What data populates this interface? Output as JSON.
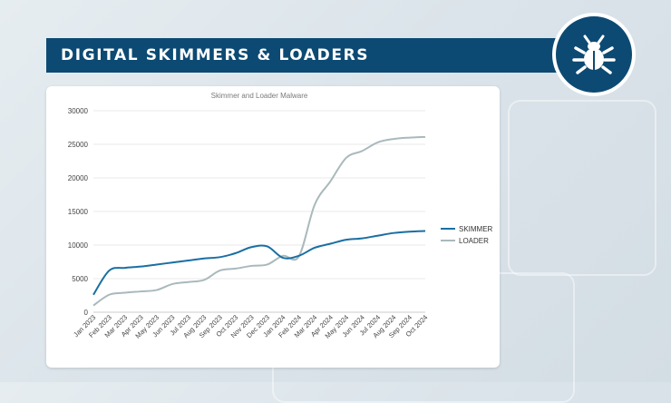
{
  "header": {
    "title": "DIGITAL SKIMMERS & LOADERS",
    "icon": "bug-icon"
  },
  "colors": {
    "banner": "#0c4a73",
    "skimmer": "#1a6fa3",
    "loader": "#a9b9bc"
  },
  "chart_data": {
    "type": "line",
    "title": "Skimmer and Loader Malware",
    "x": [
      "Jan 2023",
      "Feb 2023",
      "Mar 2023",
      "Apr 2023",
      "May 2023",
      "Jun 2023",
      "Jul 2023",
      "Aug 2023",
      "Sep 2023",
      "Oct 2023",
      "Nov 2023",
      "Dec 2023",
      "Jan 2024",
      "Feb 2024",
      "Mar 2024",
      "Apr 2024",
      "May 2024",
      "Jun 2024",
      "Jul 2024",
      "Aug 2024",
      "Sep 2024",
      "Oct 2024"
    ],
    "ylim": [
      0,
      30000
    ],
    "yticks": [
      0,
      5000,
      10000,
      15000,
      20000,
      25000,
      30000
    ],
    "grid": true,
    "legend": "right",
    "series": [
      {
        "name": "SKIMMER",
        "color": "#1a6fa3",
        "values": [
          2600,
          6200,
          6600,
          6800,
          7100,
          7400,
          7700,
          8000,
          8200,
          8800,
          9700,
          9800,
          8100,
          8400,
          9600,
          10200,
          10800,
          11000,
          11400,
          11800,
          12000,
          12100
        ]
      },
      {
        "name": "LOADER",
        "color": "#a9b9bc",
        "values": [
          1000,
          2600,
          2900,
          3100,
          3300,
          4200,
          4500,
          4800,
          6200,
          6500,
          6900,
          7100,
          8400,
          8300,
          16000,
          19500,
          23000,
          24000,
          25300,
          25800,
          26000,
          26100
        ]
      }
    ]
  }
}
